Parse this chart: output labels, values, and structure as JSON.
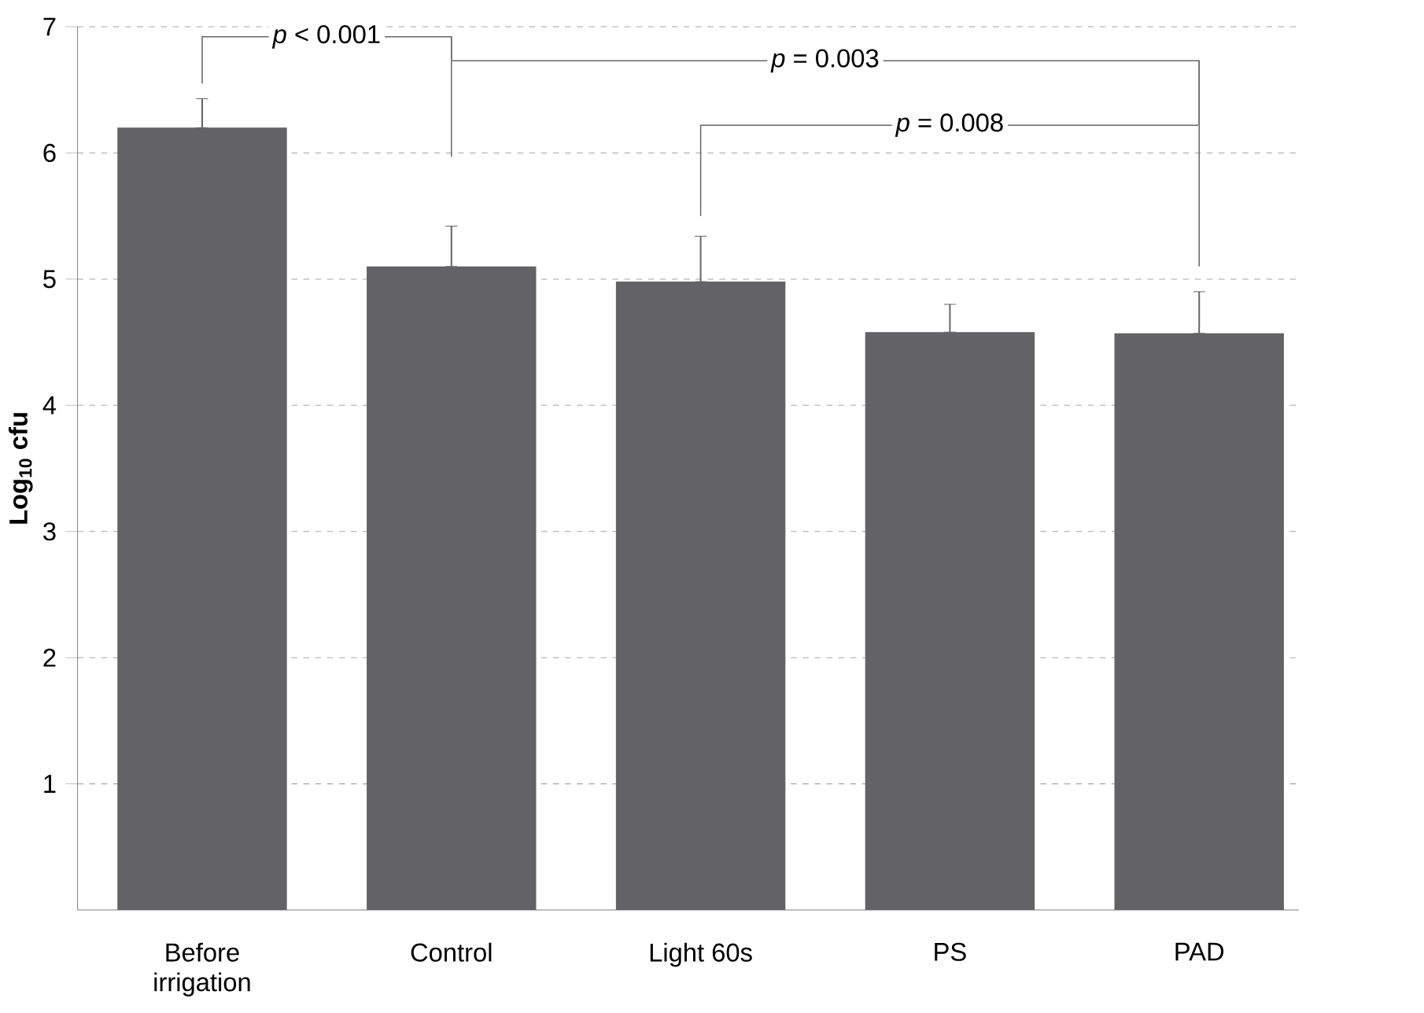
{
  "chart_data": {
    "type": "bar",
    "ylabel": "Log$_{10}$ cfu",
    "categories": [
      "Before irrigation",
      "Control",
      "Light 60s",
      "PS",
      "PAD"
    ],
    "values": [
      6.2,
      5.1,
      4.98,
      4.58,
      4.57
    ],
    "errors": [
      [
        6.2,
        6.43
      ],
      [
        5.1,
        5.42
      ],
      [
        4.98,
        5.34
      ],
      [
        4.58,
        4.8
      ],
      [
        4.57,
        4.9
      ]
    ],
    "color": "#636366",
    "ylim": [
      0,
      7
    ],
    "yticks": [
      1,
      2,
      3,
      4,
      5,
      6,
      7
    ],
    "grid": "y",
    "annotations": [
      "*p* < 0.001",
      "*p* = 0.003",
      "*p* = 0.008"
    ]
  }
}
